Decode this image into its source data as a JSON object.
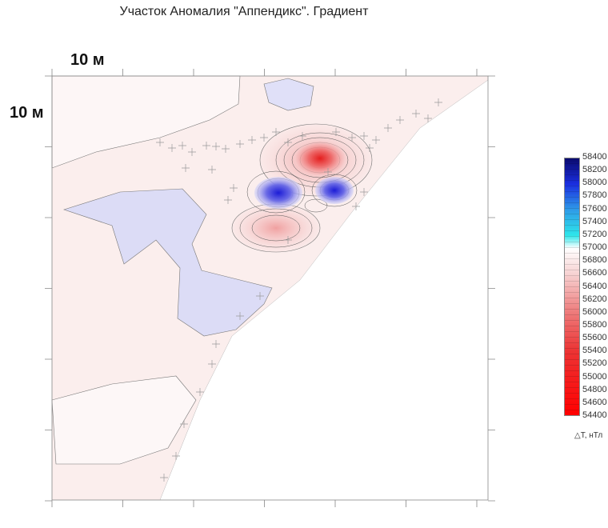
{
  "title": "Участок Аномалия \"Аппендикс\". Градиент",
  "scale_x_label": "10 м",
  "scale_y_label": "10 м",
  "colorbar": {
    "labels": [
      "58400",
      "58200",
      "58000",
      "57800",
      "57600",
      "57400",
      "57200",
      "57000",
      "56800",
      "56600",
      "56400",
      "56200",
      "56000",
      "55800",
      "55600",
      "55400",
      "55200",
      "55000",
      "54800",
      "54600",
      "54400"
    ],
    "unit": "△T, нТл",
    "stops": [
      {
        "value": 58400,
        "color": "#0a0a6e"
      },
      {
        "value": 58000,
        "color": "#1a2ee0"
      },
      {
        "value": 57600,
        "color": "#2f9be8"
      },
      {
        "value": 57200,
        "color": "#2ee6ea"
      },
      {
        "value": 57000,
        "color": "#ffffff"
      },
      {
        "value": 56600,
        "color": "#f7d2d2"
      },
      {
        "value": 56000,
        "color": "#ee7b7b"
      },
      {
        "value": 55400,
        "color": "#ec3434"
      },
      {
        "value": 54400,
        "color": "#ff0000"
      }
    ]
  },
  "colors": {
    "background_field": "#fbeeed",
    "low_field": "#dcdcf6",
    "white_area": "#ffffff"
  }
}
